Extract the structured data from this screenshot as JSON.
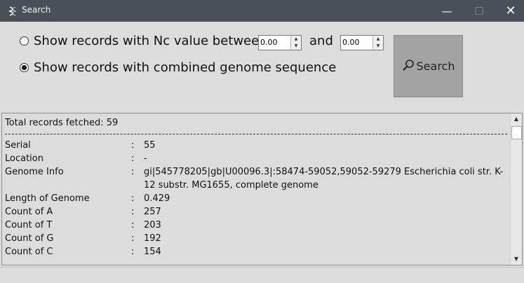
{
  "window": {
    "title": "Search",
    "minimize_glyph": "—",
    "maximize_glyph": "☐",
    "close_glyph": "✕",
    "icon": "dna-icon"
  },
  "filters": {
    "option_nc": {
      "label": "Show records with Nc value between",
      "selected": false
    },
    "nc_min": "0.00",
    "and_label": "and",
    "nc_max": "0.00",
    "option_combined": {
      "label": "Show records with combined genome sequence",
      "selected": true
    }
  },
  "search_button": {
    "label": "Search",
    "icon": "search-icon"
  },
  "results": {
    "total": "Total records fetched: 59",
    "records": [
      {
        "key": "Serial",
        "value": "55"
      },
      {
        "key": "Location",
        "value": "-"
      },
      {
        "key": "Genome Info",
        "value": "gi|545778205|gb|U00096.3|:58474-59052,59052-59279 Escherichia coli str. K-12 substr. MG1655, complete genome"
      },
      {
        "key": "Length of Genome",
        "value": "0.429"
      },
      {
        "key": "Count of A",
        "value": "257"
      },
      {
        "key": "Count of T",
        "value": "203"
      },
      {
        "key": "Count of G",
        "value": "192"
      },
      {
        "key": "Count of C",
        "value": "154"
      }
    ]
  }
}
